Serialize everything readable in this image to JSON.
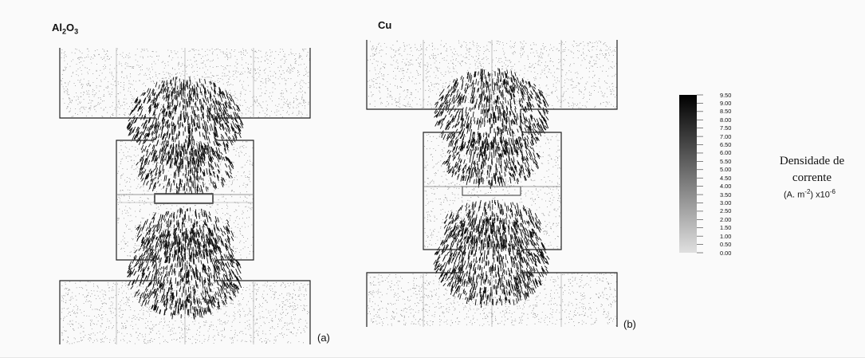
{
  "panels": [
    {
      "id": "a",
      "title": "Al2O3",
      "title_main": "Al",
      "title_sub1": "2",
      "title_mid": "O",
      "title_sub2": "3",
      "letter": "(a)"
    },
    {
      "id": "b",
      "title": "Cu",
      "letter": "(b)"
    }
  ],
  "colorbar": {
    "label_line1": "Densidade de",
    "label_line2": "corrente",
    "units_prefix": "(A. m",
    "units_exp": "-2",
    "units_mid": ") x10",
    "units_exp2": "-6",
    "ticks": [
      "9.50",
      "9.00",
      "8.50",
      "8.00",
      "7.50",
      "7.00",
      "6.50",
      "6.00",
      "5.50",
      "5.00",
      "4.50",
      "4.00",
      "3.50",
      "3.00",
      "2.50",
      "2.00",
      "1.50",
      "1.00",
      "0.50",
      "0.00"
    ],
    "color_dark": "#000000",
    "color_light": "#e0e0e0"
  }
}
